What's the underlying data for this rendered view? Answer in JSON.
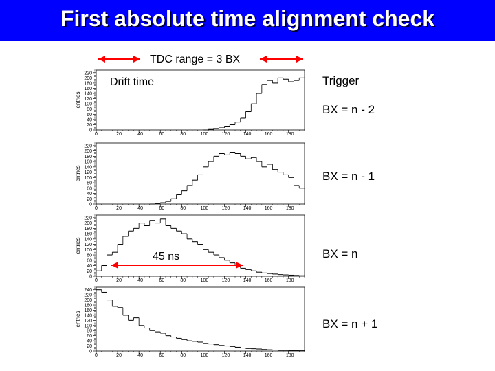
{
  "slide": {
    "title": "First absolute time alignment check",
    "title_bar_color": "#0000ff",
    "annotations": {
      "tdc_range": "TDC range = 3 BX",
      "drift_time": "Drift time",
      "trigger": "Trigger",
      "width_label": "45 ns",
      "arrow_color": "#ff0000"
    },
    "bx_labels": [
      "BX = n - 2",
      "BX = n - 1",
      "BX = n",
      "BX = n + 1"
    ]
  },
  "chart_data": [
    {
      "type": "histogram",
      "ylabel": "entries",
      "x_ticks": [
        "0",
        "20",
        "40",
        "60",
        "80",
        "100",
        "120",
        "140",
        "160",
        "180"
      ],
      "y_ticks": [
        "0",
        "20",
        "40",
        "60",
        "80",
        "100",
        "120",
        "140",
        "160",
        "180",
        "200",
        "220"
      ],
      "xlim": [
        0,
        195
      ],
      "ylim": [
        0,
        230
      ],
      "x": [
        100,
        105,
        110,
        115,
        120,
        125,
        130,
        135,
        140,
        145,
        150,
        155,
        160,
        165,
        170,
        175,
        180,
        185,
        190
      ],
      "values": [
        0,
        2,
        5,
        8,
        12,
        20,
        30,
        45,
        70,
        100,
        140,
        175,
        190,
        180,
        200,
        195,
        185,
        190,
        200
      ]
    },
    {
      "type": "histogram",
      "ylabel": "entries",
      "x_ticks": [
        "0",
        "20",
        "40",
        "60",
        "80",
        "100",
        "120",
        "140",
        "160",
        "180"
      ],
      "y_ticks": [
        "0",
        "20",
        "40",
        "60",
        "80",
        "100",
        "120",
        "140",
        "160",
        "180",
        "200",
        "220"
      ],
      "xlim": [
        0,
        195
      ],
      "ylim": [
        0,
        230
      ],
      "x": [
        50,
        55,
        60,
        65,
        70,
        75,
        80,
        85,
        90,
        95,
        100,
        105,
        110,
        115,
        120,
        125,
        130,
        135,
        140,
        145,
        150,
        155,
        160,
        165,
        170,
        175,
        180,
        185,
        190
      ],
      "values": [
        0,
        2,
        5,
        10,
        20,
        35,
        50,
        70,
        90,
        110,
        140,
        160,
        180,
        190,
        185,
        195,
        190,
        180,
        170,
        175,
        160,
        140,
        150,
        130,
        120,
        110,
        100,
        70,
        60
      ]
    },
    {
      "type": "histogram",
      "ylabel": "entries",
      "x_ticks": [
        "0",
        "20",
        "40",
        "60",
        "80",
        "100",
        "120",
        "140",
        "160",
        "180"
      ],
      "y_ticks": [
        "0",
        "20",
        "40",
        "60",
        "80",
        "100",
        "120",
        "140",
        "160",
        "180",
        "200",
        "220"
      ],
      "xlim": [
        0,
        195
      ],
      "ylim": [
        0,
        230
      ],
      "x": [
        0,
        5,
        10,
        15,
        20,
        25,
        30,
        35,
        40,
        45,
        50,
        55,
        60,
        65,
        70,
        75,
        80,
        85,
        90,
        95,
        100,
        105,
        110,
        115,
        120,
        125,
        130,
        135,
        140,
        145,
        150,
        155,
        160,
        165,
        170,
        175,
        180,
        185,
        190
      ],
      "values": [
        20,
        40,
        80,
        90,
        120,
        150,
        170,
        180,
        200,
        190,
        210,
        200,
        215,
        190,
        180,
        170,
        160,
        140,
        130,
        120,
        100,
        90,
        80,
        70,
        60,
        50,
        40,
        30,
        25,
        20,
        15,
        12,
        10,
        8,
        6,
        5,
        4,
        3,
        2
      ]
    },
    {
      "type": "histogram",
      "ylabel": "entries",
      "x_ticks": [
        "0",
        "20",
        "40",
        "60",
        "80",
        "100",
        "120",
        "140",
        "160",
        "180"
      ],
      "y_ticks": [
        "0",
        "20",
        "40",
        "60",
        "80",
        "100",
        "120",
        "140",
        "160",
        "180",
        "200",
        "220",
        "240"
      ],
      "xlim": [
        0,
        195
      ],
      "ylim": [
        0,
        250
      ],
      "x": [
        0,
        5,
        10,
        15,
        20,
        25,
        30,
        35,
        40,
        45,
        50,
        55,
        60,
        65,
        70,
        75,
        80,
        85,
        90,
        95,
        100,
        105,
        110,
        115,
        120,
        125,
        130,
        135,
        140,
        145,
        150,
        155,
        160,
        165,
        170,
        175,
        180,
        185,
        190
      ],
      "values": [
        240,
        230,
        200,
        175,
        170,
        140,
        120,
        130,
        100,
        90,
        80,
        75,
        70,
        60,
        55,
        50,
        45,
        40,
        38,
        35,
        30,
        28,
        25,
        22,
        20,
        18,
        15,
        12,
        10,
        9,
        8,
        6,
        5,
        4,
        3,
        3,
        2,
        2,
        1
      ]
    }
  ]
}
